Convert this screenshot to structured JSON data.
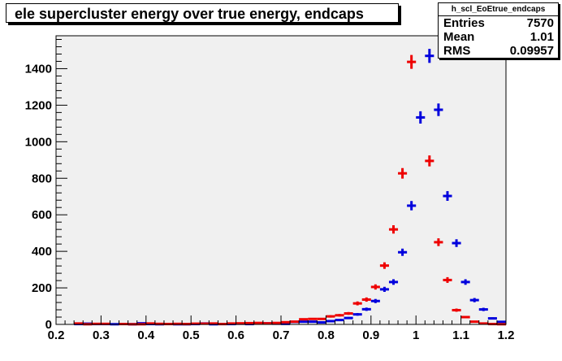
{
  "title": "ele supercluster energy over true energy, endcaps",
  "stats": {
    "name": "h_scl_EoEtrue_endcaps",
    "rows": [
      {
        "label": "Entries",
        "value": "7570"
      },
      {
        "label": "Mean",
        "value": "1.01"
      },
      {
        "label": "RMS",
        "value": "0.09957"
      }
    ]
  },
  "colors": {
    "frame_fill": "#f0f0f0",
    "series1": "#0000dd",
    "series2": "#ee0000"
  },
  "chart_data": {
    "type": "scatter",
    "title": "ele supercluster energy over true energy, endcaps",
    "xlabel": "",
    "ylabel": "",
    "xlim": [
      0.2,
      1.2
    ],
    "ylim": [
      0,
      1580
    ],
    "xticks": [
      "0.2",
      "0.3",
      "0.4",
      "0.5",
      "0.6",
      "0.7",
      "0.8",
      "0.9",
      "1",
      "1.1",
      "1.2"
    ],
    "yticks": [
      "0",
      "200",
      "400",
      "600",
      "800",
      "1000",
      "1200",
      "1400"
    ],
    "bin_width": 0.02,
    "series": [
      {
        "color": "#0000dd",
        "x": [
          0.21,
          0.23,
          0.25,
          0.27,
          0.29,
          0.31,
          0.33,
          0.35,
          0.37,
          0.39,
          0.41,
          0.43,
          0.45,
          0.47,
          0.49,
          0.51,
          0.53,
          0.55,
          0.57,
          0.59,
          0.61,
          0.63,
          0.65,
          0.67,
          0.69,
          0.71,
          0.73,
          0.75,
          0.77,
          0.79,
          0.81,
          0.83,
          0.85,
          0.87,
          0.89,
          0.91,
          0.93,
          0.95,
          0.97,
          0.99,
          1.01,
          1.03,
          1.05,
          1.07,
          1.09,
          1.11,
          1.13,
          1.15,
          1.17,
          1.19
        ],
        "y": [
          0,
          0,
          2,
          4,
          2,
          2,
          1,
          0,
          1,
          6,
          2,
          1,
          0,
          1,
          1,
          2,
          5,
          1,
          2,
          2,
          4,
          2,
          6,
          6,
          4,
          3,
          14,
          15,
          15,
          11,
          18,
          24,
          35,
          55,
          83,
          128,
          192,
          232,
          395,
          650,
          1133,
          1470,
          1175,
          703,
          445,
          232,
          133,
          82,
          33,
          14
        ]
      },
      {
        "color": "#ee0000",
        "x": [
          0.21,
          0.23,
          0.25,
          0.27,
          0.29,
          0.31,
          0.33,
          0.35,
          0.37,
          0.39,
          0.41,
          0.43,
          0.45,
          0.47,
          0.49,
          0.51,
          0.53,
          0.55,
          0.57,
          0.59,
          0.61,
          0.63,
          0.65,
          0.67,
          0.69,
          0.71,
          0.73,
          0.75,
          0.77,
          0.79,
          0.81,
          0.83,
          0.85,
          0.87,
          0.89,
          0.91,
          0.93,
          0.95,
          0.97,
          0.99,
          1.01,
          1.03,
          1.05,
          1.07,
          1.09,
          1.11,
          1.13,
          1.15,
          1.17,
          1.19
        ],
        "y": [
          0,
          0,
          5,
          1,
          3,
          3,
          0,
          2,
          1,
          1,
          5,
          3,
          2,
          3,
          2,
          4,
          4,
          5,
          2,
          5,
          6,
          7,
          8,
          6,
          8,
          12,
          15,
          28,
          30,
          30,
          44,
          50,
          60,
          115,
          136,
          205,
          322,
          520,
          827,
          1437,
          0,
          895,
          450,
          243,
          78,
          40,
          15,
          5,
          2,
          1
        ]
      }
    ]
  }
}
